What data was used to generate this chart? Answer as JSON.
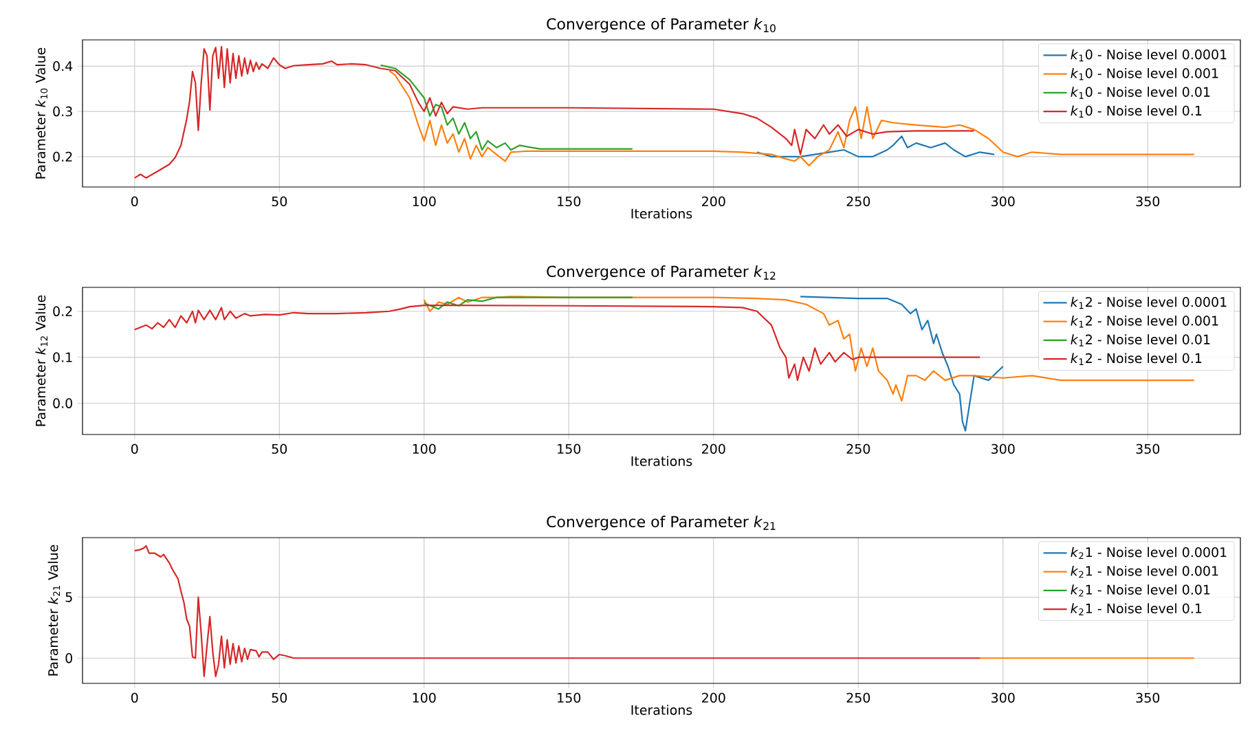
{
  "chart_data": [
    {
      "type": "line",
      "title": "Convergence of Parameter *k*$_{10}$",
      "xlabel": "Iterations",
      "ylabel": "Parameter *k*$_{10}$ Value",
      "xlim": [
        -18,
        382
      ],
      "ylim": [
        0.133,
        0.458
      ],
      "xticks": [
        0,
        50,
        100,
        150,
        200,
        250,
        300,
        350
      ],
      "yticks": [
        0.2,
        0.3,
        0.4
      ],
      "grid": true,
      "legend": "top right",
      "series": [
        {
          "name": "*k*$_{1}$0 - Noise level 0.0001",
          "color": "#1f77b4",
          "x": [
            215,
            220,
            230,
            235,
            240,
            245,
            250,
            255,
            260,
            262,
            265,
            267,
            270,
            275,
            280,
            283,
            287,
            292,
            297
          ],
          "values": [
            0.21,
            0.2,
            0.2,
            0.205,
            0.21,
            0.215,
            0.2,
            0.2,
            0.215,
            0.225,
            0.245,
            0.22,
            0.23,
            0.22,
            0.23,
            0.215,
            0.2,
            0.21,
            0.205
          ]
        },
        {
          "name": "*k*$_{1}$0 - Noise level 0.001",
          "color": "#ff7f0e",
          "x": [
            88,
            90,
            95,
            98,
            100,
            102,
            104,
            106,
            108,
            110,
            112,
            114,
            116,
            118,
            120,
            122,
            125,
            128,
            130,
            135,
            150,
            200,
            210,
            220,
            225,
            228,
            230,
            233,
            236,
            240,
            243,
            245,
            247,
            249,
            251,
            253,
            255,
            258,
            262,
            270,
            280,
            285,
            290,
            295,
            300,
            305,
            310,
            320,
            340,
            366
          ],
          "values": [
            0.39,
            0.38,
            0.33,
            0.27,
            0.235,
            0.28,
            0.225,
            0.27,
            0.23,
            0.25,
            0.21,
            0.24,
            0.195,
            0.225,
            0.2,
            0.22,
            0.205,
            0.19,
            0.21,
            0.212,
            0.212,
            0.212,
            0.21,
            0.205,
            0.195,
            0.19,
            0.2,
            0.18,
            0.2,
            0.215,
            0.255,
            0.22,
            0.28,
            0.31,
            0.24,
            0.31,
            0.24,
            0.28,
            0.275,
            0.27,
            0.265,
            0.27,
            0.26,
            0.24,
            0.21,
            0.2,
            0.21,
            0.205,
            0.205,
            0.205
          ]
        },
        {
          "name": "*k*$_{1}$0 - Noise level 0.01",
          "color": "#2ca02c",
          "x": [
            85,
            90,
            95,
            100,
            102,
            104,
            106,
            108,
            110,
            112,
            114,
            116,
            118,
            120,
            122,
            125,
            128,
            130,
            133,
            140,
            172
          ],
          "values": [
            0.402,
            0.395,
            0.37,
            0.33,
            0.29,
            0.315,
            0.31,
            0.27,
            0.285,
            0.25,
            0.275,
            0.24,
            0.255,
            0.215,
            0.235,
            0.22,
            0.23,
            0.215,
            0.225,
            0.217,
            0.217
          ]
        },
        {
          "name": "*k*$_{1}$0 - Noise level 0.1",
          "color": "#d62728",
          "x": [
            0,
            2,
            4,
            8,
            12,
            14,
            16,
            18,
            19,
            20,
            21,
            22,
            23,
            24,
            25,
            26,
            27,
            28,
            29,
            30,
            31,
            32,
            33,
            34,
            35,
            36,
            37,
            38,
            39,
            40,
            41,
            42,
            43,
            44,
            46,
            48,
            50,
            52,
            55,
            60,
            65,
            68,
            70,
            75,
            80,
            85,
            90,
            95,
            98,
            100,
            102,
            104,
            106,
            108,
            110,
            115,
            120,
            130,
            150,
            200,
            210,
            215,
            220,
            225,
            227,
            228,
            230,
            232,
            235,
            238,
            240,
            243,
            246,
            250,
            255,
            260,
            270,
            290
          ],
          "values": [
            0.153,
            0.161,
            0.153,
            0.168,
            0.183,
            0.198,
            0.225,
            0.283,
            0.323,
            0.388,
            0.363,
            0.258,
            0.363,
            0.438,
            0.423,
            0.303,
            0.423,
            0.441,
            0.373,
            0.443,
            0.353,
            0.438,
            0.363,
            0.428,
            0.373,
            0.423,
            0.378,
            0.418,
            0.383,
            0.413,
            0.388,
            0.408,
            0.393,
            0.405,
            0.395,
            0.418,
            0.403,
            0.395,
            0.401,
            0.403,
            0.405,
            0.411,
            0.403,
            0.405,
            0.403,
            0.395,
            0.39,
            0.36,
            0.32,
            0.3,
            0.33,
            0.29,
            0.32,
            0.295,
            0.31,
            0.305,
            0.308,
            0.308,
            0.308,
            0.305,
            0.295,
            0.285,
            0.265,
            0.24,
            0.225,
            0.26,
            0.205,
            0.26,
            0.24,
            0.27,
            0.25,
            0.27,
            0.245,
            0.26,
            0.25,
            0.255,
            0.257,
            0.257
          ]
        }
      ]
    },
    {
      "type": "line",
      "title": "Convergence of Parameter *k*$_{12}$",
      "xlabel": "Iterations",
      "ylabel": "Parameter *k*$_{12}$ Value",
      "xlim": [
        -18,
        382
      ],
      "ylim": [
        -0.068,
        0.252
      ],
      "xticks": [
        0,
        50,
        100,
        150,
        200,
        250,
        300,
        350
      ],
      "yticks": [
        {
          "value": 0,
          "label": "0.0"
        },
        0.1,
        0.2
      ],
      "grid": true,
      "legend": "top right",
      "series": [
        {
          "name": "*k*$_{1}$2 - Noise level 0.0001",
          "color": "#1f77b4",
          "x": [
            230,
            250,
            260,
            265,
            268,
            270,
            272,
            274,
            276,
            277,
            279,
            281,
            283,
            285,
            286,
            287,
            290,
            295,
            300
          ],
          "values": [
            0.232,
            0.228,
            0.228,
            0.215,
            0.195,
            0.205,
            0.16,
            0.18,
            0.13,
            0.15,
            0.11,
            0.08,
            0.04,
            0.02,
            -0.04,
            -0.06,
            0.06,
            0.05,
            0.08
          ]
        },
        {
          "name": "*k*$_{1}$2 - Noise level 0.001",
          "color": "#ff7f0e",
          "x": [
            100,
            102,
            105,
            108,
            112,
            115,
            120,
            125,
            130,
            150,
            200,
            215,
            225,
            232,
            238,
            240,
            243,
            245,
            247,
            249,
            251,
            253,
            255,
            257,
            260,
            262,
            263,
            265,
            267,
            270,
            273,
            276,
            280,
            285,
            290,
            300,
            310,
            320,
            340,
            366
          ],
          "values": [
            0.225,
            0.2,
            0.22,
            0.215,
            0.23,
            0.22,
            0.23,
            0.23,
            0.232,
            0.23,
            0.23,
            0.228,
            0.225,
            0.215,
            0.195,
            0.17,
            0.18,
            0.14,
            0.15,
            0.07,
            0.12,
            0.08,
            0.12,
            0.07,
            0.05,
            0.02,
            0.04,
            0.005,
            0.06,
            0.06,
            0.05,
            0.07,
            0.05,
            0.06,
            0.06,
            0.055,
            0.06,
            0.05,
            0.05,
            0.05
          ]
        },
        {
          "name": "*k*$_{1}$2 - Noise level 0.01",
          "color": "#2ca02c",
          "x": [
            100,
            105,
            108,
            112,
            115,
            120,
            125,
            172
          ],
          "values": [
            0.218,
            0.205,
            0.22,
            0.212,
            0.225,
            0.222,
            0.23,
            0.23
          ]
        },
        {
          "name": "*k*$_{1}$2 - Noise level 0.1",
          "color": "#d62728",
          "x": [
            0,
            2,
            4,
            6,
            8,
            10,
            12,
            14,
            16,
            18,
            20,
            21,
            22,
            24,
            26,
            28,
            30,
            31,
            33,
            35,
            38,
            40,
            45,
            50,
            55,
            60,
            70,
            80,
            88,
            92,
            95,
            100,
            110,
            150,
            200,
            210,
            215,
            220,
            223,
            225,
            226,
            228,
            229,
            231,
            233,
            235,
            237,
            240,
            242,
            245,
            248,
            250,
            260,
            280,
            292
          ],
          "values": [
            0.16,
            0.165,
            0.17,
            0.162,
            0.175,
            0.165,
            0.182,
            0.165,
            0.19,
            0.175,
            0.2,
            0.175,
            0.202,
            0.182,
            0.202,
            0.182,
            0.208,
            0.182,
            0.2,
            0.185,
            0.195,
            0.19,
            0.193,
            0.192,
            0.197,
            0.195,
            0.195,
            0.197,
            0.2,
            0.205,
            0.21,
            0.213,
            0.213,
            0.212,
            0.21,
            0.208,
            0.2,
            0.17,
            0.12,
            0.1,
            0.055,
            0.085,
            0.05,
            0.1,
            0.07,
            0.12,
            0.085,
            0.11,
            0.09,
            0.11,
            0.095,
            0.1,
            0.1,
            0.1,
            0.1
          ]
        }
      ]
    },
    {
      "type": "line",
      "title": "Convergence of Parameter *k*$_{21}$",
      "xlabel": "Iterations",
      "ylabel": "Parameter *k*$_{21}$ Value",
      "xlim": [
        -18,
        382
      ],
      "ylim": [
        -2.07,
        9.88
      ],
      "xticks": [
        0,
        50,
        100,
        150,
        200,
        250,
        300,
        350
      ],
      "yticks": [
        0,
        5
      ],
      "grid": true,
      "legend": "top right",
      "series": [
        {
          "name": "*k*$_{2}$1 - Noise level 0.0001",
          "color": "#1f77b4"
        },
        {
          "name": "*k*$_{2}$1 - Noise level 0.001",
          "color": "#ff7f0e",
          "x": [
            292,
            366
          ],
          "values": [
            0.0,
            0.0
          ]
        },
        {
          "name": "*k*$_{2}$1 - Noise level 0.01",
          "color": "#2ca02c"
        },
        {
          "name": "*k*$_{2}$1 - Noise level 0.1",
          "color": "#d62728",
          "x": [
            0,
            2,
            3,
            4,
            5,
            7,
            9,
            10,
            12,
            13,
            15,
            16,
            17,
            18,
            19,
            20,
            21,
            22,
            23,
            24,
            25,
            26,
            27,
            28,
            29,
            30,
            31,
            32,
            33,
            34,
            35,
            36,
            37,
            38,
            39,
            40,
            42,
            43,
            44,
            46,
            48,
            50,
            52,
            55,
            292
          ],
          "values": [
            8.8,
            8.9,
            9.0,
            9.2,
            8.6,
            8.6,
            8.3,
            8.5,
            7.8,
            7.3,
            6.5,
            5.5,
            4.6,
            3.2,
            2.6,
            0.1,
            0.0,
            5.0,
            2.0,
            -1.5,
            1.0,
            3.4,
            0.5,
            -1.5,
            -0.5,
            1.8,
            -0.8,
            1.5,
            -0.5,
            1.2,
            -0.4,
            1.0,
            -0.3,
            0.8,
            -0.1,
            0.7,
            0.6,
            0.1,
            0.5,
            0.5,
            -0.1,
            0.3,
            0.2,
            0.0,
            0.0
          ]
        }
      ]
    }
  ]
}
